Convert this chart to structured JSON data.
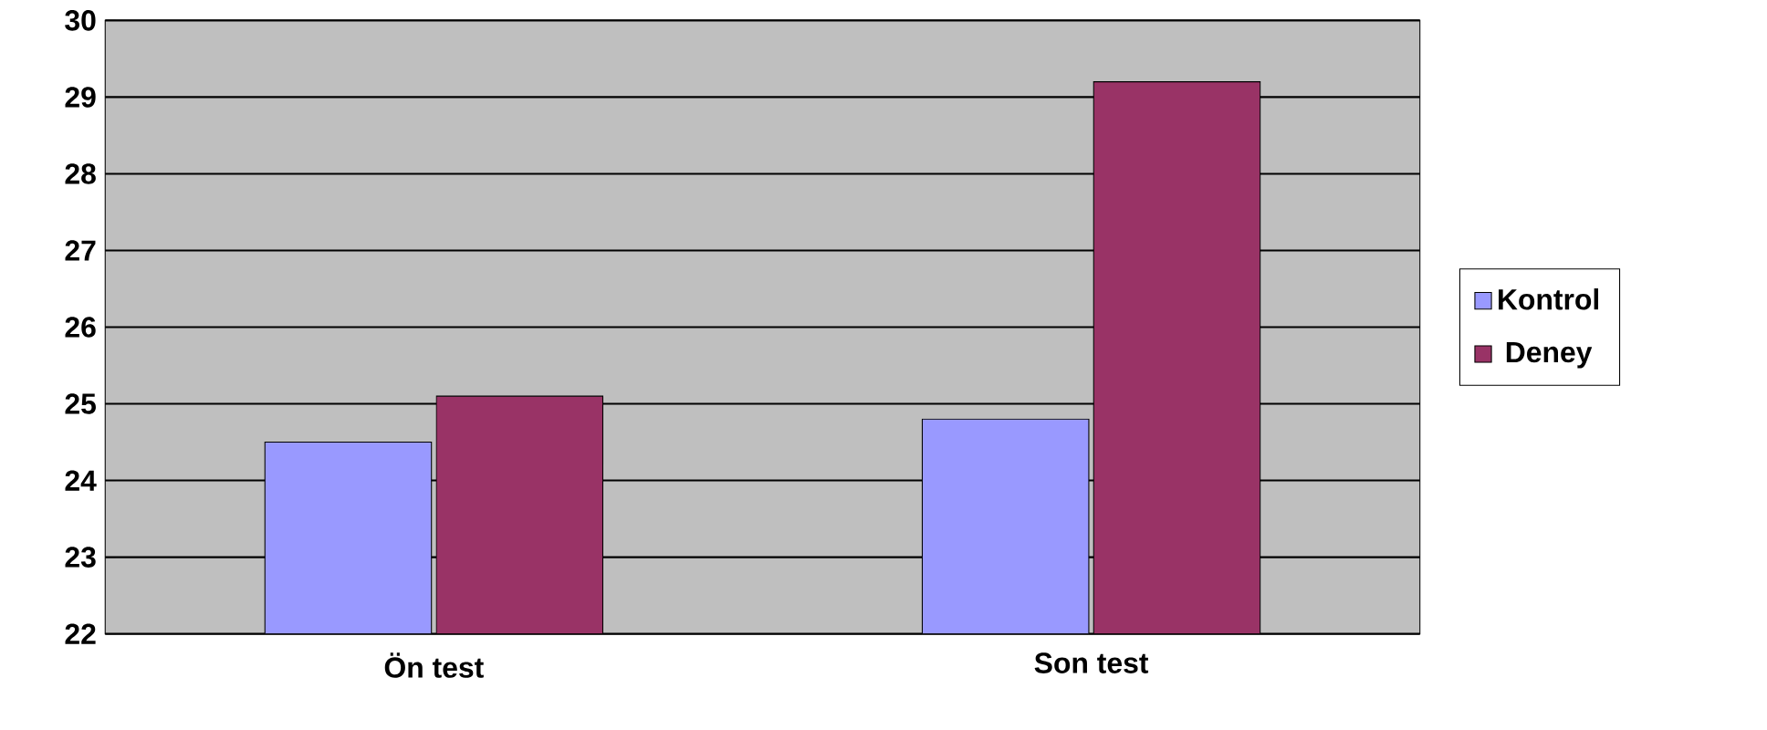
{
  "chart_data": {
    "type": "bar",
    "categories": [
      "Ön test",
      "Son test"
    ],
    "series": [
      {
        "name": "Kontrol",
        "color": "#9999ff",
        "values": [
          24.5,
          24.8
        ]
      },
      {
        "name": "Deney",
        "color": "#993366",
        "values": [
          25.1,
          29.2
        ]
      }
    ],
    "ylim": [
      22,
      30
    ],
    "yticks": [
      22,
      23,
      24,
      25,
      26,
      27,
      28,
      29,
      30
    ],
    "grid": "y",
    "legend": "right"
  }
}
